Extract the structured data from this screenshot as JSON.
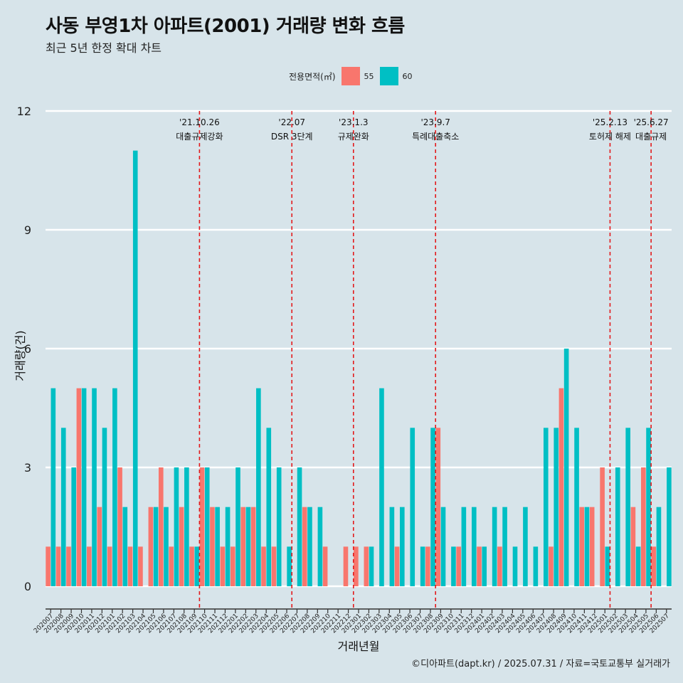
{
  "header": {
    "title": "사동 부영1차 아파트(2001) 거래량 변화 흐름",
    "subtitle": "최근 5년 한정 확대 차트"
  },
  "legend": {
    "title": "전용면적(㎡)",
    "items": [
      {
        "label": "55",
        "color": "#f8766d"
      },
      {
        "label": "60",
        "color": "#00bfc4"
      }
    ]
  },
  "caption": "©디아파트(dapt.kr) / 2025.07.31 / 자료=국토교통부 실거래가",
  "chart_data": {
    "type": "bar",
    "xlabel": "거래년월",
    "ylabel": "거래량(건)",
    "ylim": [
      0,
      12
    ],
    "yticks": [
      0,
      3,
      6,
      9,
      12
    ],
    "grid": true,
    "legend_position": "top",
    "categories": [
      "202007",
      "202008",
      "202009",
      "202010",
      "202011",
      "202012",
      "202101",
      "202102",
      "202103",
      "202104",
      "202105",
      "202106",
      "202107",
      "202108",
      "202109",
      "202110",
      "202111",
      "202112",
      "202201",
      "202202",
      "202203",
      "202204",
      "202205",
      "202206",
      "202207",
      "202208",
      "202209",
      "202210",
      "202211",
      "202212",
      "202301",
      "202302",
      "202303",
      "202304",
      "202305",
      "202306",
      "202307",
      "202308",
      "202309",
      "202310",
      "202311",
      "202312",
      "202401",
      "202402",
      "202403",
      "202404",
      "202405",
      "202406",
      "202407",
      "202408",
      "202409",
      "202410",
      "202411",
      "202412",
      "202501",
      "202502",
      "202503",
      "202504",
      "202505",
      "202506",
      "202507"
    ],
    "series": [
      {
        "name": "55",
        "color": "#f8766d",
        "values": [
          1,
          1,
          1,
          5,
          1,
          2,
          1,
          3,
          1,
          1,
          2,
          3,
          1,
          2,
          1,
          3,
          2,
          1,
          1,
          2,
          2,
          1,
          1,
          0,
          0,
          2,
          0,
          1,
          0,
          1,
          1,
          1,
          0,
          0,
          1,
          0,
          0,
          1,
          4,
          0,
          1,
          0,
          1,
          0,
          1,
          0,
          0,
          0,
          0,
          1,
          5,
          0,
          2,
          2,
          3,
          0,
          0,
          2,
          3,
          1,
          0
        ]
      },
      {
        "name": "60",
        "color": "#00bfc4",
        "values": [
          5,
          4,
          3,
          5,
          5,
          4,
          5,
          2,
          11,
          0,
          2,
          2,
          3,
          3,
          1,
          3,
          2,
          2,
          3,
          2,
          5,
          4,
          3,
          1,
          3,
          2,
          2,
          0,
          0,
          0,
          0,
          1,
          5,
          2,
          2,
          4,
          1,
          4,
          2,
          1,
          2,
          2,
          1,
          2,
          2,
          1,
          2,
          1,
          4,
          4,
          6,
          4,
          2,
          0,
          1,
          3,
          4,
          1,
          4,
          2,
          3
        ]
      }
    ],
    "annotations": [
      {
        "index": 15,
        "date": "'21.10.26",
        "label": "대출규제강화"
      },
      {
        "index": 24,
        "date": "'22.07",
        "label": "DSR 3단계"
      },
      {
        "index": 30,
        "date": "'23.1.3",
        "label": "규제완화"
      },
      {
        "index": 38,
        "date": "'23.9.7",
        "label": "특례대출축소"
      },
      {
        "index": 55,
        "date": "'25.2.13",
        "label": "토허제 해제"
      },
      {
        "index": 59,
        "date": "'25.6.27",
        "label": "대출규제"
      }
    ]
  }
}
